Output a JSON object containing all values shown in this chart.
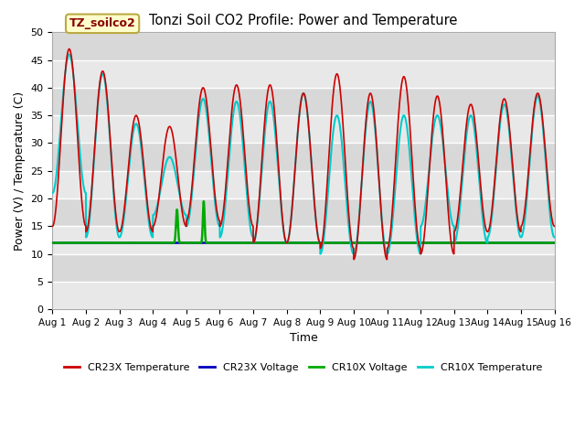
{
  "title": "Tonzi Soil CO2 Profile: Power and Temperature",
  "xlabel": "Time",
  "ylabel": "Power (V) / Temperature (C)",
  "xlim": [
    0,
    15
  ],
  "ylim": [
    0,
    50
  ],
  "yticks": [
    0,
    5,
    10,
    15,
    20,
    25,
    30,
    35,
    40,
    45,
    50
  ],
  "xtick_labels": [
    "Aug 1",
    "Aug 2",
    "Aug 3",
    "Aug 4",
    "Aug 5",
    "Aug 6",
    "Aug 7",
    "Aug 8",
    "Aug 9",
    "Aug 10",
    "Aug 11",
    "Aug 12",
    "Aug 13",
    "Aug 14",
    "Aug 15",
    "Aug 16"
  ],
  "fig_bg_color": "#ffffff",
  "plot_bg_color": "#e8e8e8",
  "grid_color": "#ffffff",
  "band_color_light": "#f0f0f0",
  "band_color_dark": "#e0e0e0",
  "cr23x_temp_color": "#cc0000",
  "cr23x_volt_color": "#0000bb",
  "cr10x_volt_color": "#00aa00",
  "cr10x_temp_color": "#00cccc",
  "voltage_level": 12.0,
  "annotation_text": "TZ_soilco2",
  "annotation_bg": "#ffffcc",
  "annotation_border": "#bbaa44"
}
